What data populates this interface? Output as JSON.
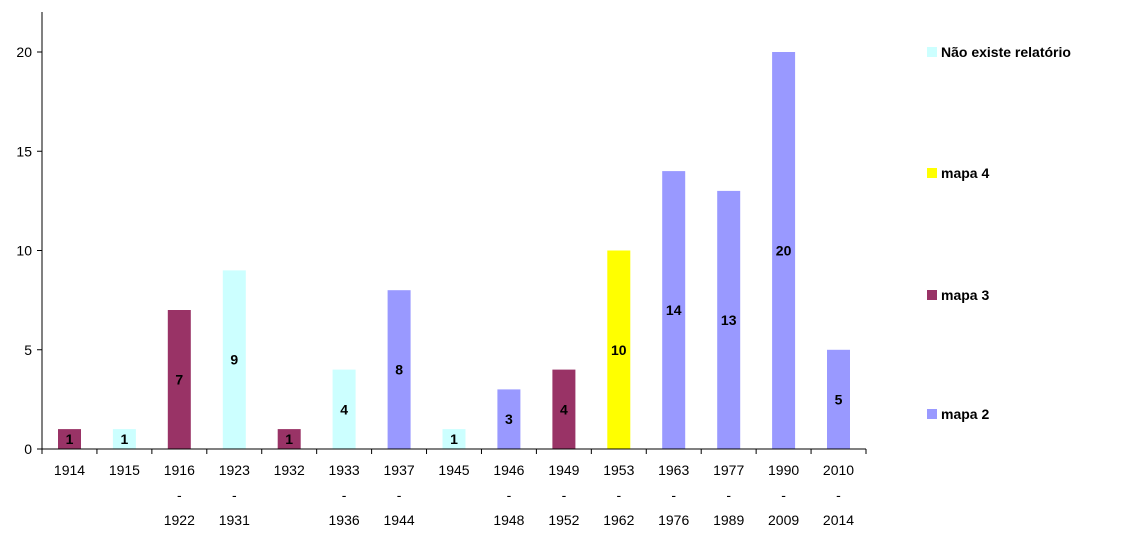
{
  "chart_data": {
    "type": "bar",
    "title": "",
    "xlabel": "",
    "ylabel": "",
    "ylim": [
      0,
      22
    ],
    "yticks": [
      0,
      5,
      10,
      15,
      20
    ],
    "grid": false,
    "legend_position": "right",
    "categories": [
      [
        "1914"
      ],
      [
        "1915"
      ],
      [
        "1916",
        "-",
        "1922"
      ],
      [
        "1923",
        "-",
        "1931"
      ],
      [
        "1932"
      ],
      [
        "1933",
        "-",
        "1936"
      ],
      [
        "1937",
        "-",
        "1944"
      ],
      [
        "1945"
      ],
      [
        "1946",
        "-",
        "1948"
      ],
      [
        "1949",
        "-",
        "1952"
      ],
      [
        "1953",
        "-",
        "1962"
      ],
      [
        "1963",
        "-",
        "1976"
      ],
      [
        "1977",
        "-",
        "1989"
      ],
      [
        "1990",
        "-",
        "2009"
      ],
      [
        "2010",
        "-",
        "2014"
      ]
    ],
    "values": [
      1,
      1,
      7,
      9,
      1,
      4,
      8,
      1,
      3,
      4,
      10,
      14,
      13,
      20,
      5
    ],
    "data_labels": [
      "1",
      "1",
      "7",
      "9",
      "1",
      "4",
      "8",
      "1",
      "3",
      "4",
      "10",
      "14",
      "13",
      "20",
      "5"
    ],
    "bar_series": [
      "mapa 3",
      "Não existe relatório",
      "mapa 3",
      "Não existe relatório",
      "mapa 3",
      "Não existe relatório",
      "mapa 2",
      "Não existe relatório",
      "mapa 2",
      "mapa 3",
      "mapa 4",
      "mapa 2",
      "mapa 2",
      "mapa 2",
      "mapa 2"
    ],
    "legend": [
      {
        "name": "Não existe relatório",
        "color": "#CCFFFF"
      },
      {
        "name": "mapa 4",
        "color": "#FFFF00"
      },
      {
        "name": "mapa 3",
        "color": "#993366"
      },
      {
        "name": "mapa 2",
        "color": "#9999FF"
      }
    ]
  }
}
